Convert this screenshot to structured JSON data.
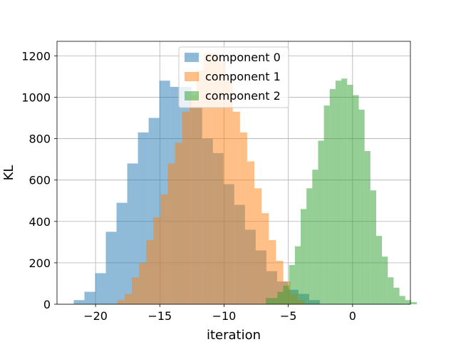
{
  "chart_data": {
    "type": "histogram",
    "xlabel": "iteration",
    "ylabel": "KL",
    "xlim": [
      -23.0,
      4.5
    ],
    "ylim": [
      0,
      1270
    ],
    "xticks": [
      -20,
      -15,
      -10,
      -5,
      0
    ],
    "xtick_labels": [
      "−20",
      "−15",
      "−10",
      "−5",
      "0"
    ],
    "yticks": [
      0,
      200,
      400,
      600,
      800,
      1000,
      1200
    ],
    "ytick_labels": [
      "0",
      "200",
      "400",
      "600",
      "800",
      "1000",
      "1200"
    ],
    "grid": true,
    "legend_position": "top-center",
    "alpha": 0.5,
    "series": [
      {
        "name": "component 0",
        "color": "#1f77b4",
        "bin_start": -21.7,
        "bin_width": 0.833,
        "values": [
          20,
          60,
          150,
          350,
          490,
          680,
          830,
          900,
          1080,
          1050,
          1050,
          950,
          800,
          730,
          580,
          480,
          360,
          260,
          160,
          110,
          70,
          50,
          20
        ]
      },
      {
        "name": "component 1",
        "color": "#ff7f0e",
        "bin_start": -18.3,
        "bin_width": 0.561,
        "values": [
          20,
          50,
          130,
          200,
          310,
          420,
          530,
          680,
          780,
          930,
          1010,
          1130,
          1210,
          1210,
          1170,
          1080,
          930,
          830,
          690,
          560,
          440,
          310,
          210,
          110,
          50,
          20
        ]
      },
      {
        "name": "component 2",
        "color": "#2ca02c",
        "bin_start": -6.75,
        "bin_width": 0.452,
        "values": [
          30,
          30,
          60,
          90,
          190,
          280,
          460,
          560,
          650,
          790,
          960,
          1040,
          1080,
          1090,
          1060,
          1010,
          940,
          740,
          550,
          330,
          230,
          130,
          80,
          40,
          20,
          10
        ]
      }
    ]
  }
}
